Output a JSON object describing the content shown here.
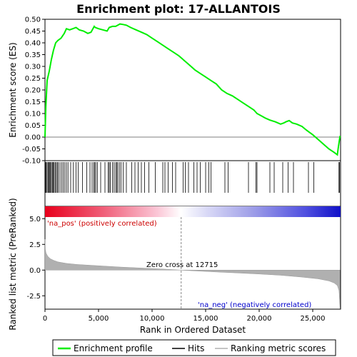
{
  "chart_data": [
    {
      "panel": "enrichment-profile",
      "type": "line",
      "title": "Enrichment plot: 17-ALLANTOIS",
      "xlabel": "",
      "ylabel": "Enrichment score (ES)",
      "xlim": [
        0,
        27600
      ],
      "ylim": [
        -0.1,
        0.5
      ],
      "yticks": [
        "-0.10",
        "-0.05",
        "0.00",
        "0.05",
        "0.10",
        "0.15",
        "0.20",
        "0.25",
        "0.30",
        "0.35",
        "0.40",
        "0.45",
        "0.50"
      ],
      "grid": false,
      "series": [
        {
          "name": "Enrichment profile",
          "color": "#00ee00",
          "x": [
            0,
            80,
            200,
            400,
            600,
            800,
            1000,
            1200,
            1500,
            1800,
            2000,
            2300,
            2600,
            2900,
            3200,
            3600,
            4000,
            4300,
            4600,
            4700,
            5000,
            5400,
            5800,
            6000,
            6300,
            6600,
            6800,
            7000,
            7300,
            7600,
            8000,
            8500,
            9000,
            9500,
            10000,
            10500,
            11000,
            11500,
            12000,
            12500,
            13000,
            13500,
            14000,
            14500,
            15000,
            15500,
            16000,
            16500,
            17000,
            17500,
            18000,
            18500,
            19000,
            19500,
            19800,
            20200,
            20600,
            21000,
            21500,
            22000,
            22300,
            22500,
            22800,
            23100,
            23500,
            24000,
            24400,
            24700,
            25000,
            25500,
            26000,
            26500,
            27000,
            27300,
            27400,
            27500,
            27550
          ],
          "y": [
            0.0,
            0.13,
            0.24,
            0.28,
            0.33,
            0.37,
            0.4,
            0.41,
            0.42,
            0.44,
            0.46,
            0.455,
            0.46,
            0.465,
            0.455,
            0.45,
            0.44,
            0.445,
            0.47,
            0.465,
            0.46,
            0.455,
            0.45,
            0.465,
            0.47,
            0.47,
            0.475,
            0.48,
            0.478,
            0.475,
            0.465,
            0.455,
            0.445,
            0.435,
            0.42,
            0.405,
            0.39,
            0.375,
            0.36,
            0.345,
            0.325,
            0.305,
            0.285,
            0.27,
            0.255,
            0.24,
            0.225,
            0.2,
            0.185,
            0.175,
            0.16,
            0.145,
            0.13,
            0.115,
            0.1,
            0.09,
            0.08,
            0.072,
            0.065,
            0.055,
            0.06,
            0.065,
            0.07,
            0.06,
            0.055,
            0.045,
            0.03,
            0.02,
            0.01,
            -0.01,
            -0.03,
            -0.05,
            -0.065,
            -0.075,
            -0.04,
            -0.01,
            0.005
          ]
        }
      ]
    },
    {
      "panel": "hits",
      "type": "scatter",
      "xlim": [
        0,
        27600
      ],
      "series": [
        {
          "name": "Hits",
          "color": "#000000",
          "x": [
            50,
            120,
            200,
            300,
            380,
            450,
            520,
            600,
            700,
            780,
            850,
            950,
            1050,
            1150,
            1250,
            1400,
            1550,
            1700,
            1850,
            2000,
            2150,
            2400,
            2650,
            2900,
            3100,
            3500,
            3900,
            4200,
            4400,
            4550,
            4650,
            4750,
            4900,
            5200,
            5600,
            5900,
            6000,
            6100,
            6300,
            6450,
            6600,
            6700,
            6800,
            6950,
            7100,
            7300,
            7600,
            8100,
            8400,
            8700,
            9000,
            9300,
            9700,
            10300,
            11000,
            11200,
            11500,
            11900,
            12200,
            12900,
            13100,
            13400,
            13900,
            14200,
            14500,
            15000,
            15300,
            15500,
            16800,
            17100,
            19000,
            19700,
            19800,
            21000,
            21400,
            22200,
            22700,
            23200,
            24600,
            25100,
            27450,
            27500
          ]
        }
      ]
    },
    {
      "panel": "ranked-metric",
      "type": "area",
      "xlabel": "Rank in Ordered Dataset",
      "ylabel": "Ranked list metric (PreRanked)",
      "xlim": [
        0,
        27600
      ],
      "ylim": [
        -3.8,
        6.2
      ],
      "xticks": [
        "0",
        "5,000",
        "10,000",
        "15,000",
        "20,000",
        "25,000"
      ],
      "yticks": [
        "-2.5",
        "0.0",
        "2.5",
        "5.0"
      ],
      "grid": false,
      "annotations": [
        "'na_pos' (positively correlated)",
        "Zero cross at 12715",
        "'na_neg' (negatively correlated)"
      ],
      "zero_cross": 12715,
      "series": [
        {
          "name": "Ranking metric scores",
          "color": "#b0b0b0",
          "x": [
            0,
            30,
            100,
            250,
            500,
            800,
            1200,
            2000,
            3000,
            5000,
            7000,
            9000,
            11000,
            12715,
            14000,
            16000,
            18000,
            20000,
            22000,
            24000,
            25500,
            26500,
            27000,
            27300,
            27450,
            27550
          ],
          "y": [
            3.0,
            2.0,
            1.65,
            1.35,
            1.1,
            0.95,
            0.8,
            0.65,
            0.55,
            0.42,
            0.3,
            0.2,
            0.1,
            0.0,
            -0.08,
            -0.18,
            -0.28,
            -0.38,
            -0.5,
            -0.68,
            -0.85,
            -1.05,
            -1.25,
            -1.5,
            -2.0,
            -3.7
          ]
        }
      ]
    }
  ],
  "legend": {
    "items": [
      {
        "label": "Enrichment profile",
        "color": "#00ee00"
      },
      {
        "label": "Hits",
        "color": "#000000"
      },
      {
        "label": "Ranking metric scores",
        "color": "#b0b0b0"
      }
    ]
  }
}
